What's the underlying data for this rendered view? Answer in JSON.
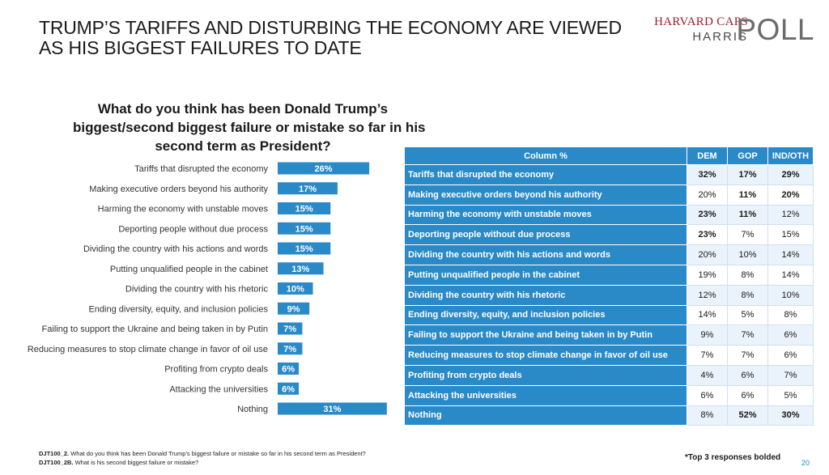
{
  "title": {
    "line1": "TRUMP’S TARIFFS AND DISTURBING THE ECONOMY ARE VIEWED",
    "line2": "AS HIS BIGGEST FAILURES TO DATE"
  },
  "logo": {
    "line1": "HARVARD CAPS",
    "line2": "HARRIS",
    "poll": "POLL"
  },
  "question": {
    "line1": "What do you think has been Donald Trump’s",
    "line2": "biggest/second biggest failure or mistake so far in his",
    "line3": "second term as President?"
  },
  "colors": {
    "bar": "#2a8ac8",
    "header": "#2a8ac8"
  },
  "chart_data": {
    "type": "bar",
    "orientation": "horizontal",
    "title": "What do you think has been Donald Trump’s biggest/second biggest failure or mistake so far in his second term as President?",
    "categories": [
      "Tariffs that disrupted the economy",
      "Making executive orders beyond his authority",
      "Harming the economy with unstable moves",
      "Deporting people without due process",
      "Dividing the country with his actions and words",
      "Putting unqualified people in the cabinet",
      "Dividing the country with his rhetoric",
      "Ending diversity, equity, and inclusion policies",
      "Failing to support the Ukraine and being taken in by Putin",
      "Reducing measures to stop climate change in favor of oil use",
      "Profiting from crypto deals",
      "Attacking the universities",
      "Nothing"
    ],
    "values": [
      26,
      17,
      15,
      15,
      15,
      13,
      10,
      9,
      7,
      7,
      6,
      6,
      31
    ],
    "value_labels": [
      "26%",
      "17%",
      "15%",
      "15%",
      "15%",
      "13%",
      "10%",
      "9%",
      "7%",
      "7%",
      "6%",
      "6%",
      "31%"
    ],
    "unit": "%"
  },
  "table": {
    "headers": [
      "Column %",
      "DEM",
      "GOP",
      "IND/OTH"
    ],
    "rows": [
      {
        "label": "Tariffs that disrupted the economy",
        "values": [
          "32%",
          "17%",
          "29%"
        ],
        "bold": [
          true,
          true,
          true
        ]
      },
      {
        "label": "Making executive orders beyond his authority",
        "values": [
          "20%",
          "11%",
          "20%"
        ],
        "bold": [
          false,
          true,
          true
        ]
      },
      {
        "label": "Harming the economy with unstable moves",
        "values": [
          "23%",
          "11%",
          "12%"
        ],
        "bold": [
          true,
          true,
          false
        ]
      },
      {
        "label": "Deporting people without due process",
        "values": [
          "23%",
          "7%",
          "15%"
        ],
        "bold": [
          true,
          false,
          false
        ]
      },
      {
        "label": "Dividing the country with his actions and words",
        "values": [
          "20%",
          "10%",
          "14%"
        ],
        "bold": [
          false,
          false,
          false
        ]
      },
      {
        "label": "Putting unqualified people in the cabinet",
        "values": [
          "19%",
          "8%",
          "14%"
        ],
        "bold": [
          false,
          false,
          false
        ]
      },
      {
        "label": "Dividing the country with his rhetoric",
        "values": [
          "12%",
          "8%",
          "10%"
        ],
        "bold": [
          false,
          false,
          false
        ]
      },
      {
        "label": "Ending diversity, equity, and inclusion policies",
        "values": [
          "14%",
          "5%",
          "8%"
        ],
        "bold": [
          false,
          false,
          false
        ]
      },
      {
        "label": "Failing to support the Ukraine and being taken in by Putin",
        "values": [
          "9%",
          "7%",
          "6%"
        ],
        "bold": [
          false,
          false,
          false
        ]
      },
      {
        "label": "Reducing measures to stop climate change in favor of oil use",
        "values": [
          "7%",
          "7%",
          "6%"
        ],
        "bold": [
          false,
          false,
          false
        ]
      },
      {
        "label": "Profiting from crypto deals",
        "values": [
          "4%",
          "6%",
          "7%"
        ],
        "bold": [
          false,
          false,
          false
        ]
      },
      {
        "label": "Attacking the universities",
        "values": [
          "6%",
          "6%",
          "5%"
        ],
        "bold": [
          false,
          false,
          false
        ]
      },
      {
        "label": "Nothing",
        "values": [
          "8%",
          "52%",
          "30%"
        ],
        "bold": [
          false,
          true,
          true
        ]
      }
    ]
  },
  "footnotes": {
    "line1_code": "DJT100_2.",
    "line1_text": "What do you think has been Donald Trump’s biggest failure or mistake so far in his second term as President?",
    "line2_code": "DJT100_2B.",
    "line2_text": "What is his second biggest failure or mistake?"
  },
  "note": "*Top 3 responses bolded",
  "page_number": "20"
}
